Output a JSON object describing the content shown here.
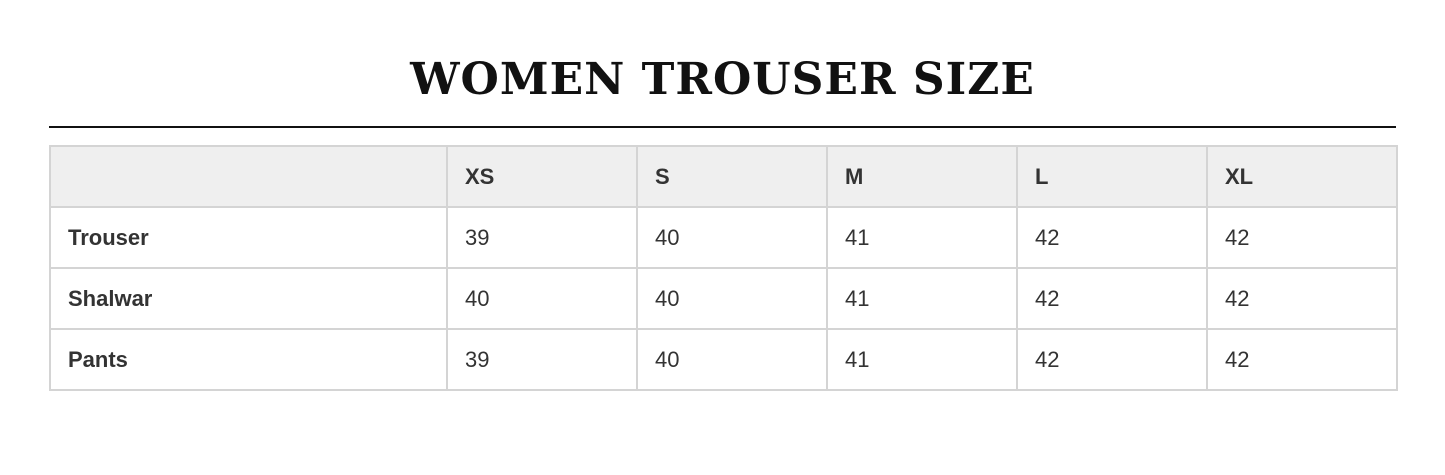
{
  "title": "WOMEN TROUSER SIZE",
  "table": {
    "headers": [
      "",
      "XS",
      "S",
      "M",
      "L",
      "XL"
    ],
    "rows": [
      {
        "label": "Trouser",
        "values": [
          "39",
          "40",
          "41",
          "42",
          "42"
        ]
      },
      {
        "label": "Shalwar",
        "values": [
          "40",
          "40",
          "41",
          "42",
          "42"
        ]
      },
      {
        "label": "Pants",
        "values": [
          "39",
          "40",
          "41",
          "42",
          "42"
        ]
      }
    ]
  }
}
